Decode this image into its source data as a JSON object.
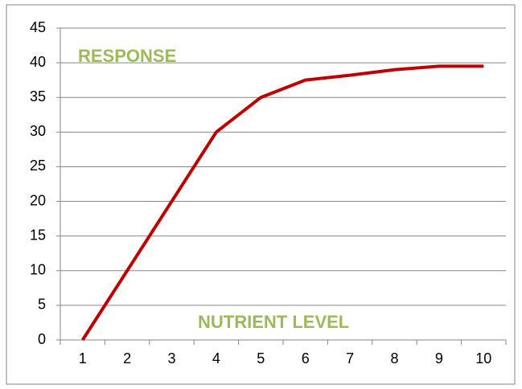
{
  "chart_data": {
    "type": "line",
    "categories": [
      "1",
      "2",
      "3",
      "4",
      "5",
      "6",
      "7",
      "8",
      "9",
      "10"
    ],
    "series": [
      {
        "color": "#c00000",
        "values": [
          0,
          10,
          20,
          30,
          35,
          37.5,
          38.2,
          39,
          39.5,
          39.5
        ]
      }
    ],
    "ylim": [
      0,
      45
    ],
    "yticks": [
      0,
      5,
      10,
      15,
      20,
      25,
      30,
      35,
      40,
      45
    ],
    "grid": true,
    "annotations": [
      "RESPONSE",
      "NUTRIENT LEVEL"
    ]
  }
}
